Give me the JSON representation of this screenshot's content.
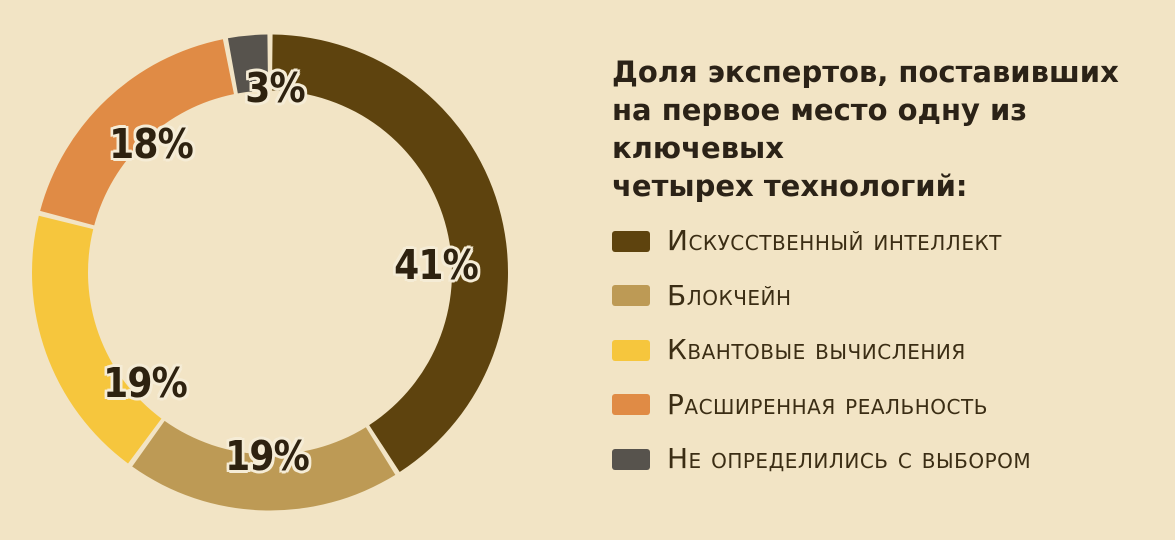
{
  "background_color": "#f2e4c5",
  "title": {
    "text": "Доля экспертов, поставивших\nна первое место одну из ключевых\nчетырех технологий:"
  },
  "chart_data": {
    "type": "pie",
    "variant": "donut",
    "title": "Доля экспертов, поставивших на первое место одну из ключевых четырех технологий:",
    "start_angle_deg": 0,
    "direction": "clockwise",
    "legend_position": "right",
    "units": "%",
    "slices": [
      {
        "id": "ai",
        "label": "Искусственный интеллект",
        "value": 41,
        "value_label": "41%",
        "color": "#5e430e"
      },
      {
        "id": "blockchain",
        "label": "Блокчейн",
        "value": 19,
        "value_label": "19%",
        "color": "#bd9a55"
      },
      {
        "id": "quantum",
        "label": "Квантовые вычисления",
        "value": 19,
        "value_label": "19%",
        "color": "#f6c63d"
      },
      {
        "id": "ar",
        "label": "Расширенная реальность",
        "value": 18,
        "value_label": "18%",
        "color": "#e08b45"
      },
      {
        "id": "undecided",
        "label": "Не определились с выбором",
        "value": 3,
        "value_label": "3%",
        "color": "#57534d"
      }
    ]
  }
}
